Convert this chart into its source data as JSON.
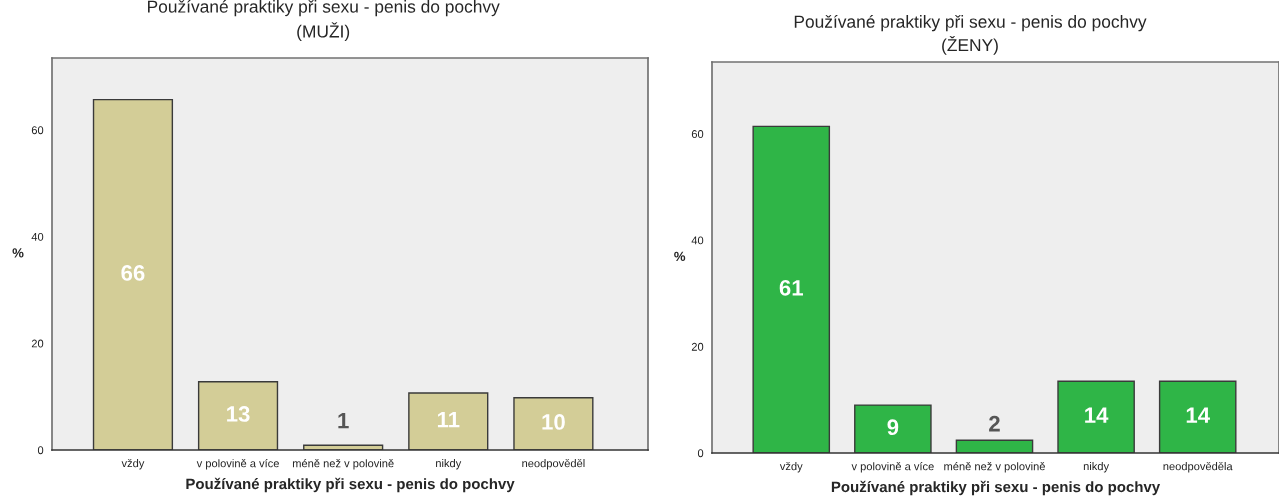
{
  "chart_data": [
    {
      "type": "bar",
      "title": "Používané praktiky při sexu - penis do pochvy",
      "subtitle": "(MUŽI)",
      "xlabel": "Používané praktiky při sexu - penis do pochvy",
      "ylabel": "%",
      "categories": [
        "vždy",
        "v polovině a více",
        "méně než v polovině",
        "nikdy",
        "neodpověděl"
      ],
      "values": [
        65.7,
        12.8,
        0.9,
        10.7,
        9.8
      ],
      "value_labels": [
        "66",
        "13",
        "1",
        "11",
        "10"
      ],
      "color": "#d3cd97",
      "ylim": [
        0,
        73.5
      ],
      "yticks": [
        0,
        20,
        40,
        60
      ]
    },
    {
      "type": "bar",
      "title": "Používané praktiky při sexu - penis do pochvy",
      "subtitle": "(ŽENY)",
      "xlabel": "Používané praktiky při sexu - penis do pochvy",
      "ylabel": "%",
      "categories": [
        "vždy",
        "v polovině a více",
        "méně než v polovině",
        "nikdy",
        "neodpověděla"
      ],
      "values": [
        61.4,
        9.0,
        2.4,
        13.5,
        13.5
      ],
      "value_labels": [
        "61",
        "9",
        "2",
        "14",
        "14"
      ],
      "color": "#2fb547",
      "ylim": [
        0,
        73.5
      ],
      "yticks": [
        0,
        20,
        40,
        60
      ]
    }
  ]
}
